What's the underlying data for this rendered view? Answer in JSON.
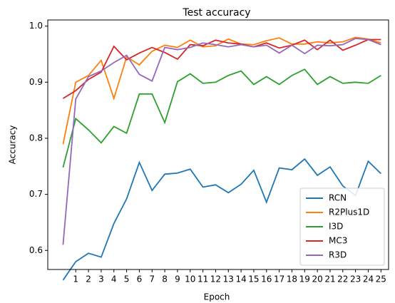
{
  "chart_data": {
    "type": "line",
    "title": "Test accuracy",
    "x_label": "Epoch",
    "y_label": "Accuracy",
    "x": [
      0,
      1,
      2,
      3,
      4,
      5,
      6,
      7,
      8,
      9,
      10,
      11,
      12,
      13,
      14,
      15,
      16,
      17,
      18,
      19,
      20,
      21,
      22,
      23,
      24,
      25
    ],
    "series": [
      {
        "name": "RCN",
        "color": "#1f77b4",
        "values": [
          0.547,
          0.58,
          0.595,
          0.588,
          0.648,
          0.692,
          0.757,
          0.707,
          0.736,
          0.738,
          0.745,
          0.713,
          0.717,
          0.703,
          0.718,
          0.743,
          0.686,
          0.747,
          0.744,
          0.763,
          0.734,
          0.749,
          0.715,
          0.698,
          0.759,
          0.737
        ]
      },
      {
        "name": "R2Plus1D",
        "color": "#ff7f0e",
        "values": [
          0.789,
          0.9,
          0.912,
          0.939,
          0.871,
          0.945,
          0.931,
          0.955,
          0.966,
          0.962,
          0.975,
          0.963,
          0.965,
          0.977,
          0.968,
          0.967,
          0.974,
          0.979,
          0.968,
          0.968,
          0.972,
          0.97,
          0.972,
          0.98,
          0.977,
          0.97
        ]
      },
      {
        "name": "I3D",
        "color": "#2ca02c",
        "values": [
          0.748,
          0.835,
          0.815,
          0.792,
          0.821,
          0.809,
          0.879,
          0.879,
          0.828,
          0.901,
          0.915,
          0.898,
          0.9,
          0.912,
          0.92,
          0.896,
          0.91,
          0.896,
          0.912,
          0.923,
          0.896,
          0.91,
          0.898,
          0.9,
          0.898,
          0.912
        ]
      },
      {
        "name": "MC3",
        "color": "#d62728",
        "values": [
          0.871,
          0.885,
          0.905,
          0.918,
          0.964,
          0.94,
          0.952,
          0.962,
          0.953,
          0.941,
          0.967,
          0.965,
          0.975,
          0.97,
          0.968,
          0.963,
          0.97,
          0.961,
          0.966,
          0.975,
          0.958,
          0.975,
          0.957,
          0.966,
          0.976,
          0.976
        ]
      },
      {
        "name": "R3D",
        "color": "#9467bd",
        "values": [
          0.61,
          0.87,
          0.91,
          0.92,
          0.935,
          0.948,
          0.914,
          0.902,
          0.962,
          0.958,
          0.962,
          0.97,
          0.967,
          0.963,
          0.967,
          0.963,
          0.966,
          0.952,
          0.966,
          0.951,
          0.966,
          0.965,
          0.967,
          0.978,
          0.976,
          0.967
        ]
      }
    ],
    "xlim": [
      -1.2,
      25.6
    ],
    "ylim": [
      0.566,
      1.011
    ],
    "xticks": [
      1,
      2,
      3,
      4,
      5,
      6,
      7,
      8,
      9,
      10,
      11,
      12,
      13,
      14,
      15,
      16,
      17,
      18,
      19,
      20,
      21,
      22,
      23,
      24,
      25
    ],
    "yticks": [
      0.6,
      0.7,
      0.8,
      0.9,
      {
        "value": 1,
        "label": "1.0"
      }
    ],
    "legend": "lower right",
    "grid": false
  }
}
